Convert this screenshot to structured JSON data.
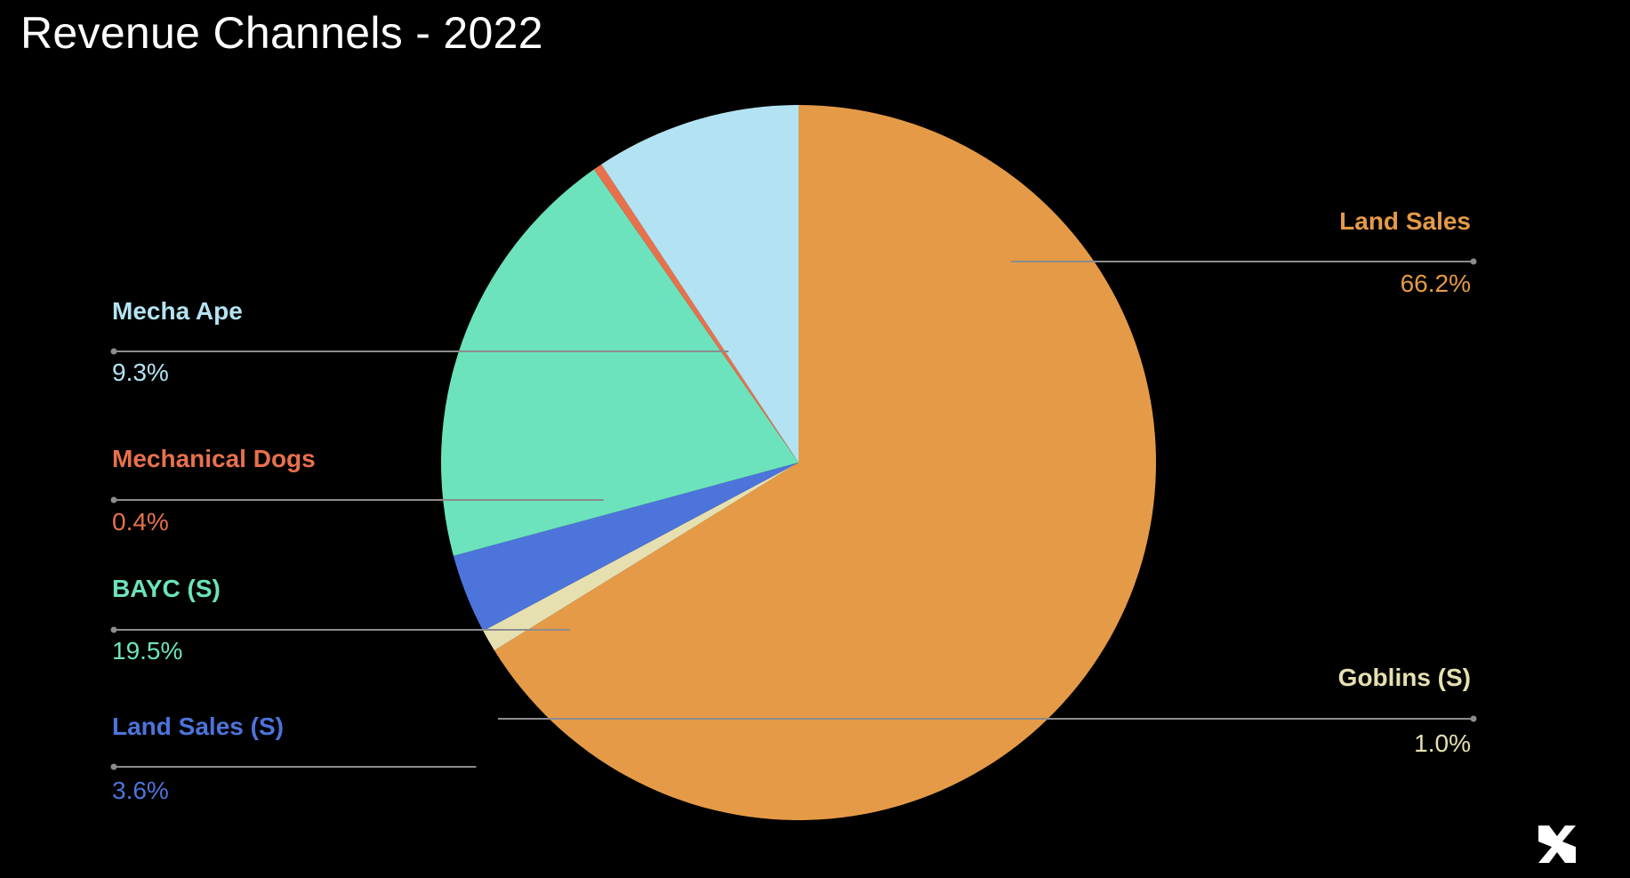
{
  "chart_data": {
    "type": "pie",
    "title": "Revenue Channels - 2022",
    "slices": [
      {
        "label": "Land Sales",
        "value": 66.2,
        "value_label": "66.2%",
        "color": "#e59a47",
        "label_side": "right"
      },
      {
        "label": "Goblins (S)",
        "value": 1.0,
        "value_label": "1.0%",
        "color": "#e6e0b0",
        "label_side": "right"
      },
      {
        "label": "Land Sales (S)",
        "value": 3.6,
        "value_label": "3.6%",
        "color": "#4d74db",
        "label_side": "left"
      },
      {
        "label": "BAYC (S)",
        "value": 19.5,
        "value_label": "19.5%",
        "color": "#6ce3bc",
        "label_side": "left"
      },
      {
        "label": "Mechanical Dogs",
        "value": 0.4,
        "value_label": "0.4%",
        "color": "#e8714c",
        "label_side": "left"
      },
      {
        "label": "Mecha Ape",
        "value": 9.3,
        "value_label": "9.3%",
        "color": "#b3e3f2",
        "label_side": "left"
      }
    ],
    "legend": "none",
    "leader_line_color": "#8c8c8c",
    "background": "#000000"
  }
}
